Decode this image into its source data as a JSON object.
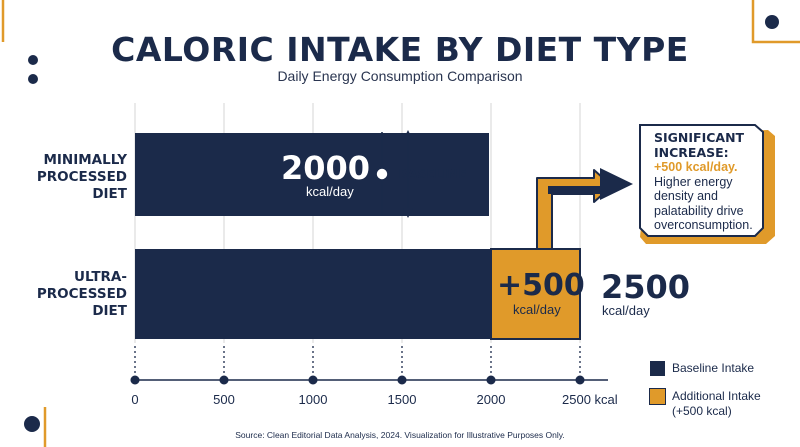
{
  "title": "CALORIC INTAKE BY DIET TYPE",
  "subtitle": "Daily Energy Consumption Comparison",
  "colors": {
    "navy": "#1b2a4a",
    "gold": "#e09a2a",
    "grid": "#d4d4d4",
    "background": "#ffffff"
  },
  "chart_data": {
    "type": "bar",
    "orientation": "horizontal",
    "stacked": true,
    "categories": [
      "MINIMALLY PROCESSED DIET",
      "ULTRA-PROCESSED DIET"
    ],
    "category_label_lines": [
      [
        "MINIMALLY",
        "PROCESSED",
        "DIET"
      ],
      [
        "ULTRA-",
        "PROCESSED",
        "DIET"
      ]
    ],
    "series": [
      {
        "name": "Baseline Intake",
        "values": [
          2000,
          2000
        ],
        "color": "#1b2a4a"
      },
      {
        "name": "Additional Intake (+500 kcal)",
        "values": [
          0,
          500
        ],
        "color": "#e09a2a"
      }
    ],
    "xlim": [
      0,
      2500
    ],
    "x_ticks": [
      0,
      500,
      1000,
      1500,
      2000,
      2500
    ],
    "x_tick_labels": [
      "0",
      "500",
      "1000",
      "1500",
      "2000",
      "2500 kcal"
    ],
    "grid": true,
    "legend": {
      "position": "bottom-right",
      "entries": [
        {
          "lines": [
            "Baseline Intake"
          ],
          "color": "#1b2a4a"
        },
        {
          "lines": [
            "Additional Intake",
            "(+500 kcal)"
          ],
          "color": "#e09a2a"
        }
      ]
    },
    "annotations": {
      "baseline_value": "2000",
      "baseline_unit": "kcal/day",
      "baseline_marker": "BASELINE",
      "increase_value": "+500",
      "increase_unit": "kcal/day",
      "total_value": "2500",
      "total_unit": "kcal/day",
      "callout_heading": "SIGNIFICANT INCREASE:",
      "callout_highlight": "+500 kcal/day.",
      "callout_body": "Higher energy density and palatability drive overconsumption."
    }
  },
  "source": "Source: Clean Editorial Data Analysis, 2024. Visualization for Illustrative Purposes Only."
}
